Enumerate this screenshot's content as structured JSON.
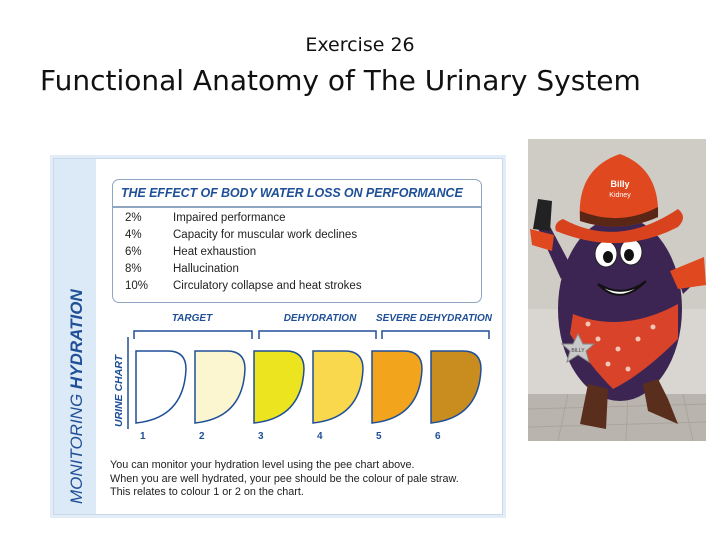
{
  "slide": {
    "subtitle": "Exercise 26",
    "title": "Functional Anatomy of The Urinary System"
  },
  "panel": {
    "side_label_prefix": "MONITORING ",
    "side_label_emph": "HYDRATION",
    "effect_heading": "THE EFFECT OF BODY WATER LOSS ON PERFORMANCE",
    "effects": [
      {
        "pct": "2%",
        "text": "Impaired performance"
      },
      {
        "pct": "4%",
        "text": "Capacity for muscular work declines"
      },
      {
        "pct": "6%",
        "text": "Heat exhaustion"
      },
      {
        "pct": "8%",
        "text": "Hallucination"
      },
      {
        "pct": "10%",
        "text": "Circulatory collapse and heat strokes"
      }
    ],
    "urine_chart_label": "URINE CHART",
    "groups": [
      "TARGET",
      "DEHYDRATION",
      "SEVERE DEHYDRATION"
    ],
    "swatches": [
      {
        "number": "1",
        "color": "#ffffff"
      },
      {
        "number": "2",
        "color": "#fbf6d0"
      },
      {
        "number": "3",
        "color": "#ece41f"
      },
      {
        "number": "4",
        "color": "#f9d84e"
      },
      {
        "number": "5",
        "color": "#f2a51c"
      },
      {
        "number": "6",
        "color": "#c98d1f"
      }
    ],
    "footnote_lines": [
      "You can monitor your hydration level using the pee chart above.",
      "When you are well hydrated, your pee should be the colour of pale straw.",
      "This relates to colour 1 or 2 on the chart."
    ]
  },
  "mascot": {
    "hat_text_1": "Billy",
    "hat_text_2": "Kidney",
    "badge_text": "BILLY"
  },
  "colors": {
    "accent_blue": "#1f4f97",
    "panel_side": "#dce9f6",
    "hat_red": "#e0481f",
    "body_purple": "#3d2553"
  }
}
